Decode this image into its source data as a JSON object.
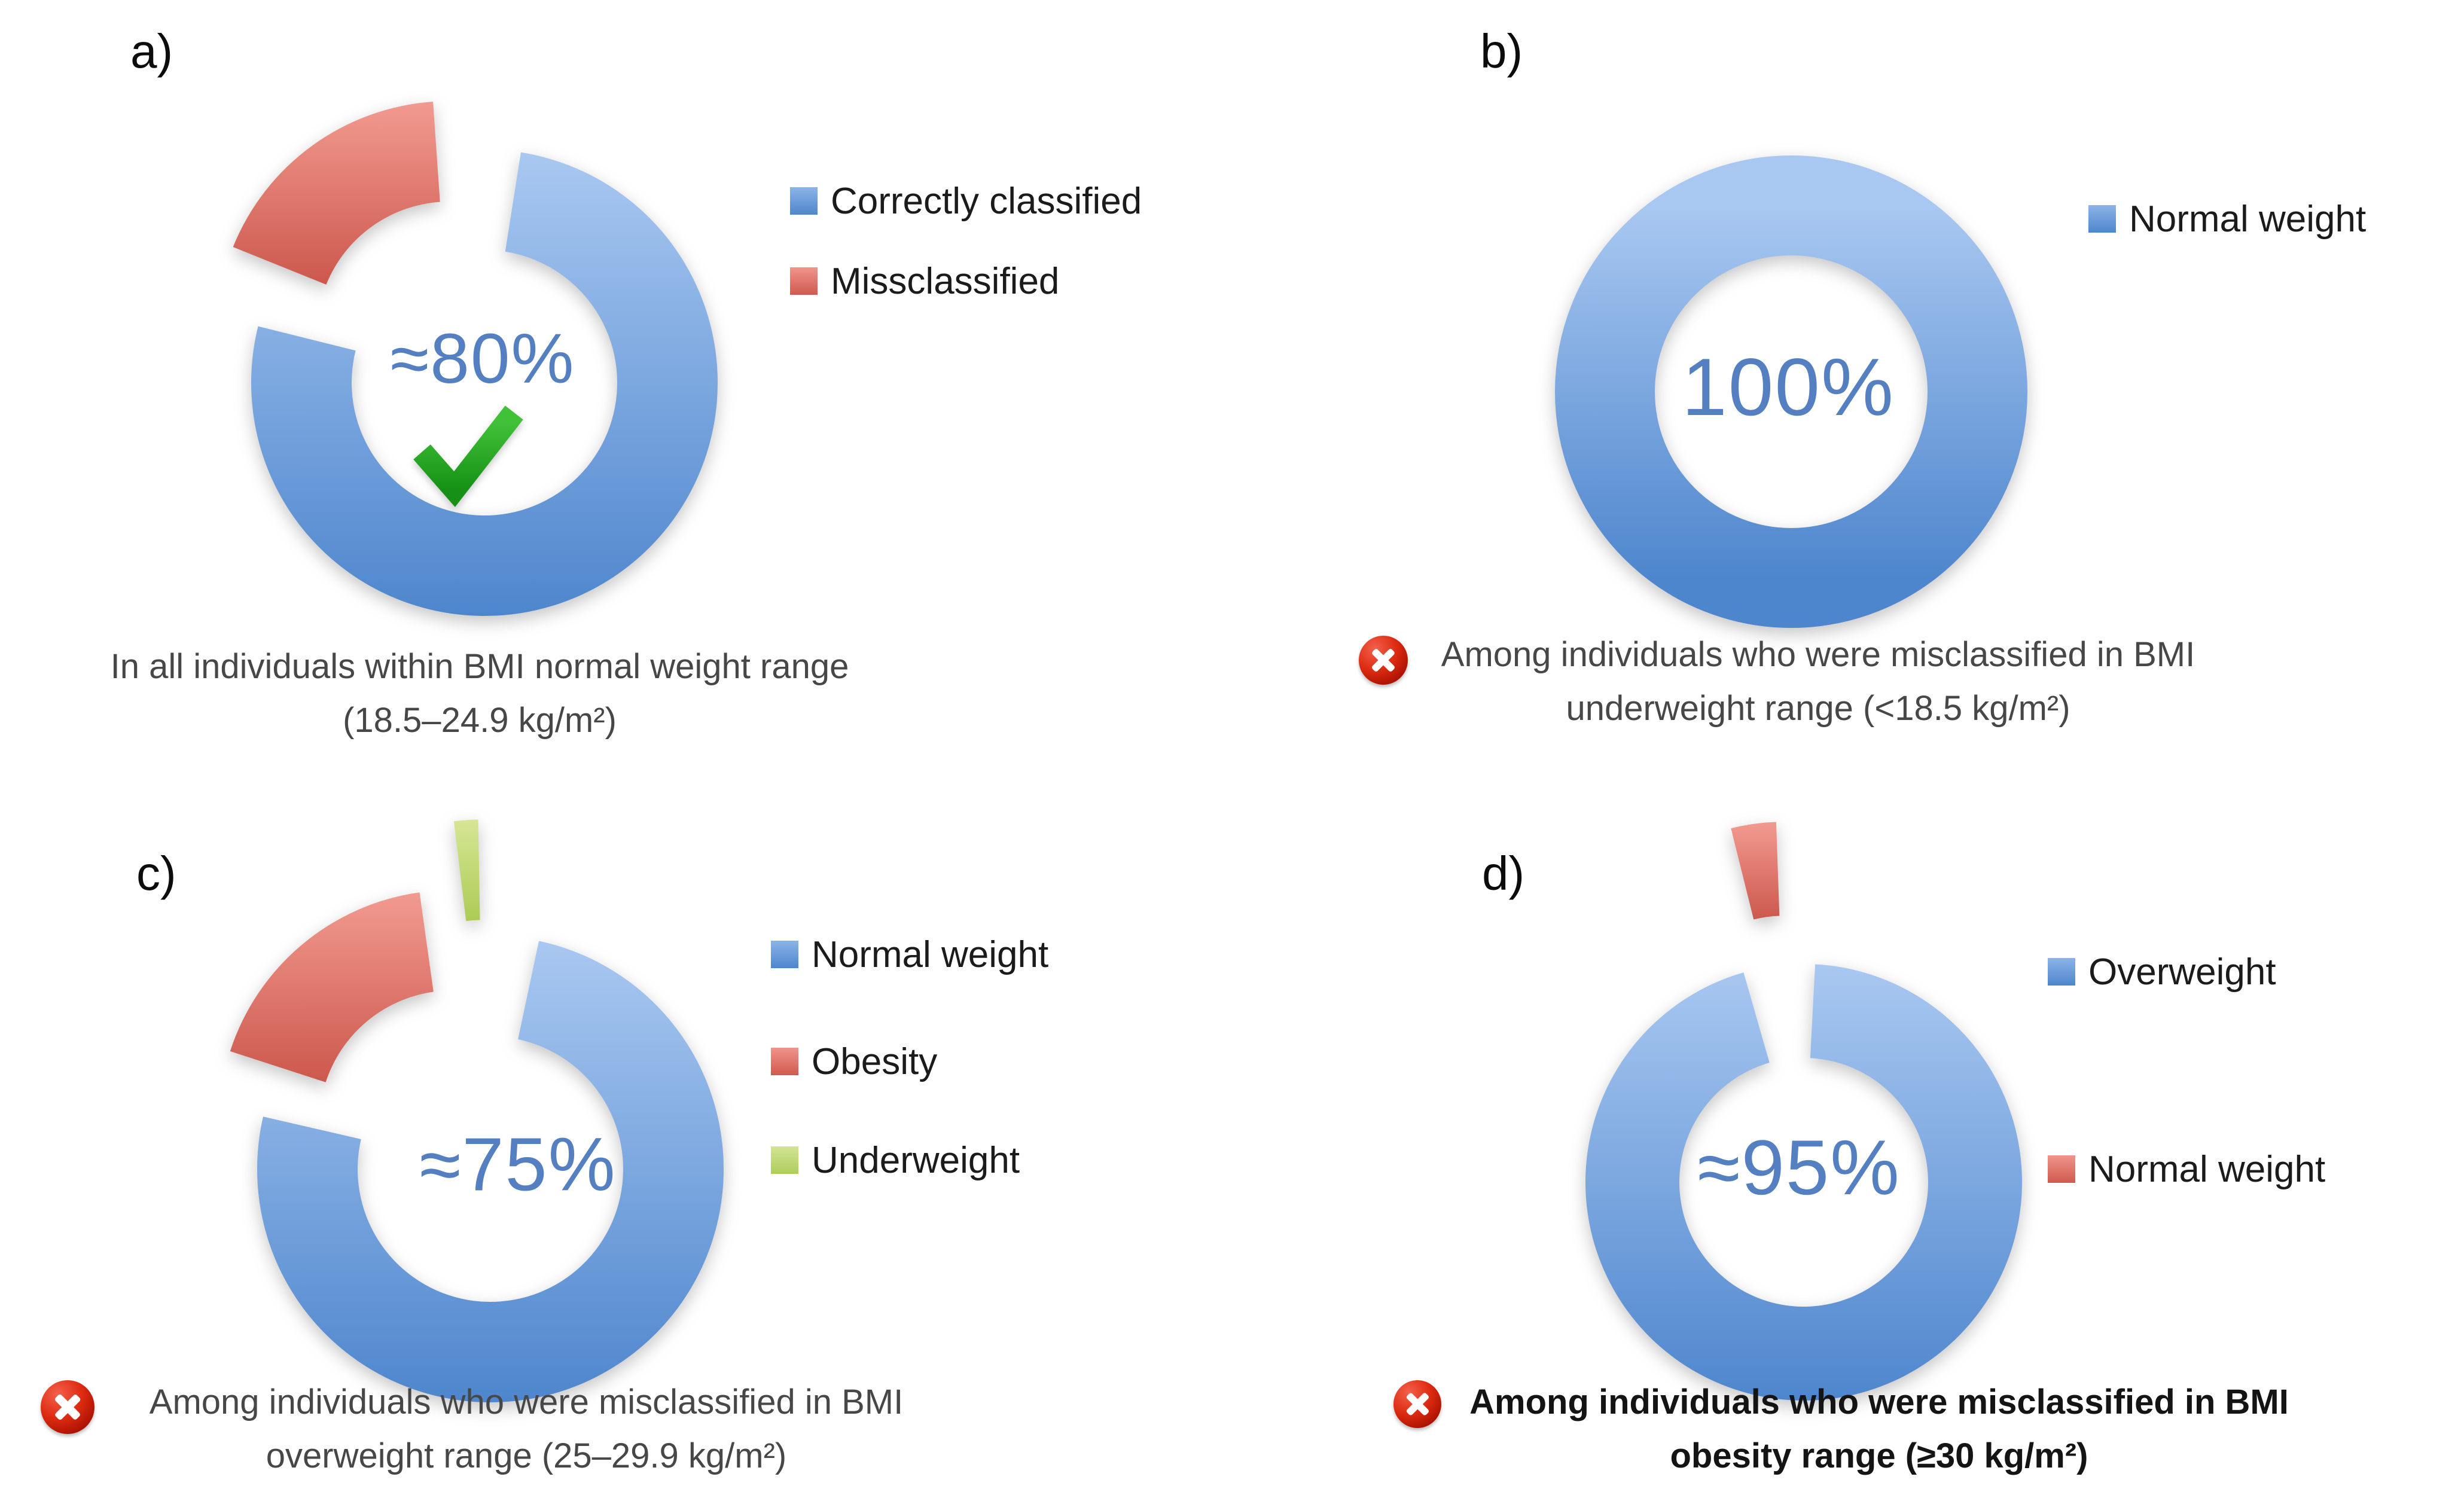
{
  "figure": {
    "background": "#ffffff"
  },
  "colors": {
    "blue_light": "#a9c8f1",
    "blue_dark": "#4e86cd",
    "red_light": "#f29a90",
    "red_dark": "#cc584d",
    "green_light": "#d6e695",
    "green_dark": "#abcb55",
    "percent_text": "#5480c2",
    "caption_gray": "#474747",
    "check_green": "#2aa52a",
    "error_icon_red": "#d42a10"
  },
  "panels": [
    {
      "id": "a",
      "label": "a)",
      "center_label": "≈80%",
      "has_check": true,
      "caption_icon": null,
      "caption_bold": false,
      "caption_lines": [
        "In all individuals within BMI normal weight range",
        "(18.5–24.9 kg/m²)"
      ],
      "legend": [
        {
          "label": "Correctly classified",
          "color": "blue"
        },
        {
          "label": "Missclassified",
          "color": "red"
        }
      ],
      "segments": [
        {
          "name": "Correctly classified",
          "color": "blue",
          "from": 9,
          "to": 284,
          "explode": 0
        },
        {
          "name": "Missclassified",
          "color": "red",
          "from": 292,
          "to": 356,
          "explode": 100
        }
      ]
    },
    {
      "id": "b",
      "label": "b)",
      "center_label": "100%",
      "has_check": false,
      "caption_icon": "error-x",
      "caption_bold": false,
      "caption_lines": [
        "Among individuals who were misclassified in BMI",
        "underweight range (<18.5 kg/m²)"
      ],
      "legend": [
        {
          "label": "Normal weight",
          "color": "blue"
        }
      ],
      "segments": [
        {
          "name": "Normal weight",
          "color": "blue",
          "from": 0,
          "to": 360,
          "explode": 0
        }
      ]
    },
    {
      "id": "c",
      "label": "c)",
      "center_label": "≈75%",
      "has_check": false,
      "caption_icon": "error-x",
      "caption_bold": false,
      "caption_lines": [
        "Among individuals who were misclassified in BMI",
        "overweight range (25–29.9 kg/m²)"
      ],
      "legend": [
        {
          "label": "Normal weight",
          "color": "blue"
        },
        {
          "label": "Obesity",
          "color": "red"
        },
        {
          "label": "Underweight",
          "color": "green"
        }
      ],
      "segments": [
        {
          "name": "Normal weight",
          "color": "blue",
          "from": 12,
          "to": 283,
          "explode": 0
        },
        {
          "name": "Obesity",
          "color": "red",
          "from": 288,
          "to": 352,
          "explode": 100
        },
        {
          "name": "Underweight",
          "color": "green",
          "from": 353,
          "to": 359,
          "explode": 195
        }
      ]
    },
    {
      "id": "d",
      "label": "d)",
      "center_label": "≈95%",
      "has_check": false,
      "caption_icon": "error-x",
      "caption_bold": true,
      "caption_lines": [
        "Among individuals who were misclassified in BMI",
        "obesity range (≥30 kg/m²)"
      ],
      "legend": [
        {
          "label": "Overweight",
          "color": "blue"
        },
        {
          "label": "Normal weight",
          "color": "red"
        }
      ],
      "segments": [
        {
          "name": "Overweight",
          "color": "blue",
          "from": 3,
          "to": 344,
          "explode": 0
        },
        {
          "name": "Normal weight",
          "color": "red",
          "from": 346,
          "to": 358,
          "explode": 240
        }
      ]
    }
  ],
  "chart_data": [
    {
      "panel": "a",
      "type": "pie",
      "variant": "donut",
      "categories": [
        "Correctly classified",
        "Missclassified"
      ],
      "values": [
        80,
        20
      ],
      "center_label": "≈80%",
      "annotation": "green check mark",
      "caption": "In all individuals within BMI normal weight range (18.5–24.9 kg/m²)",
      "legend_position": "right"
    },
    {
      "panel": "b",
      "type": "pie",
      "variant": "donut",
      "categories": [
        "Normal weight"
      ],
      "values": [
        100
      ],
      "center_label": "100%",
      "annotation": "red error icon",
      "caption": "Among individuals who were misclassified in BMI underweight range (<18.5 kg/m²)",
      "legend_position": "right"
    },
    {
      "panel": "c",
      "type": "pie",
      "variant": "donut",
      "categories": [
        "Normal weight",
        "Obesity",
        "Underweight"
      ],
      "values": [
        75,
        23,
        2
      ],
      "center_label": "≈75%",
      "annotation": "red error icon",
      "caption": "Among individuals who were misclassified in BMI overweight range (25–29.9 kg/m²)",
      "legend_position": "right"
    },
    {
      "panel": "d",
      "type": "pie",
      "variant": "donut",
      "categories": [
        "Overweight",
        "Normal weight"
      ],
      "values": [
        95,
        5
      ],
      "center_label": "≈95%",
      "annotation": "red error icon",
      "caption": "Among individuals who were misclassified in BMI obesity range (≥30 kg/m²)",
      "legend_position": "right"
    }
  ]
}
